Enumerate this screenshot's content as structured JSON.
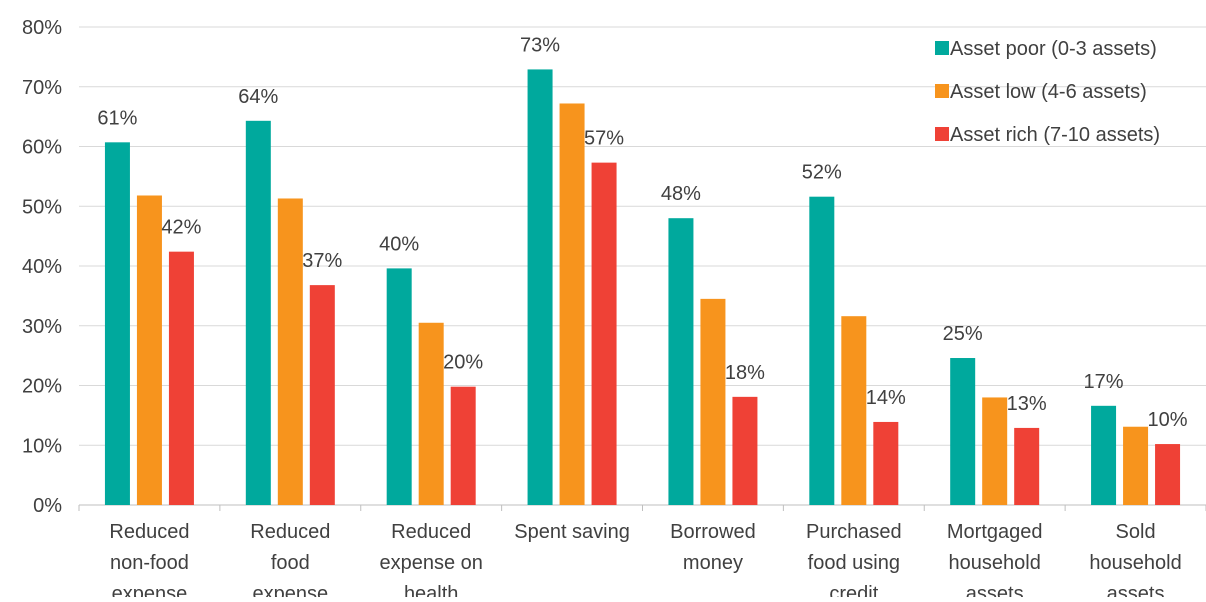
{
  "chart_data": {
    "type": "bar",
    "categories": [
      [
        "Reduced",
        "non-food",
        "expense"
      ],
      [
        "Reduced",
        "food",
        "expense"
      ],
      [
        "Reduced",
        "expense on",
        "health"
      ],
      [
        "Spent saving"
      ],
      [
        "Borrowed",
        "money"
      ],
      [
        "Purchased",
        "food using",
        "credit"
      ],
      [
        "Mortgaged",
        "household",
        "assets"
      ],
      [
        "Sold",
        "household",
        "assets"
      ]
    ],
    "series": [
      {
        "name": "Asset poor (0-3 assets)",
        "color": "#00a99d",
        "values": [
          60.7,
          64.3,
          39.6,
          72.9,
          48.0,
          51.6,
          24.6,
          16.6
        ]
      },
      {
        "name": "Asset low (4-6 assets)",
        "color": "#f7941d",
        "values": [
          51.8,
          51.3,
          30.5,
          67.2,
          34.5,
          31.6,
          18.0,
          13.1
        ]
      },
      {
        "name": "Asset rich (7-10 assets)",
        "color": "#ef4136",
        "values": [
          42.4,
          36.8,
          19.8,
          57.3,
          18.1,
          13.9,
          12.9,
          10.2
        ]
      }
    ],
    "data_labels": [
      {
        "series": 0,
        "category": 0,
        "text": "61%"
      },
      {
        "series": 2,
        "category": 0,
        "text": "42%"
      },
      {
        "series": 0,
        "category": 1,
        "text": "64%"
      },
      {
        "series": 2,
        "category": 1,
        "text": "37%"
      },
      {
        "series": 0,
        "category": 2,
        "text": "40%"
      },
      {
        "series": 2,
        "category": 2,
        "text": "20%"
      },
      {
        "series": 0,
        "category": 3,
        "text": "73%"
      },
      {
        "series": 2,
        "category": 3,
        "text": "57%"
      },
      {
        "series": 0,
        "category": 4,
        "text": "48%"
      },
      {
        "series": 2,
        "category": 4,
        "text": "18%"
      },
      {
        "series": 0,
        "category": 5,
        "text": "52%"
      },
      {
        "series": 2,
        "category": 5,
        "text": "14%"
      },
      {
        "series": 0,
        "category": 6,
        "text": "25%"
      },
      {
        "series": 2,
        "category": 6,
        "text": "13%"
      },
      {
        "series": 0,
        "category": 7,
        "text": "17%"
      },
      {
        "series": 2,
        "category": 7,
        "text": "10%"
      }
    ],
    "y_ticks": [
      "0%",
      "10%",
      "20%",
      "30%",
      "40%",
      "50%",
      "60%",
      "70%",
      "80%"
    ],
    "ylim": [
      0,
      80
    ],
    "grid": true,
    "legend_position": "top-right"
  }
}
